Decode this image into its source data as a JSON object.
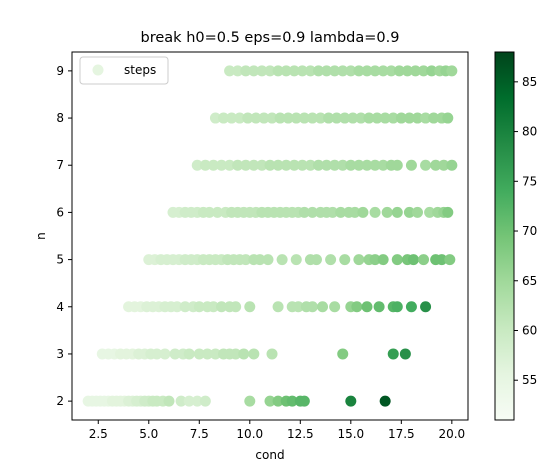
{
  "chart_data": {
    "type": "scatter",
    "title": "break h0=0.5 eps=0.9 lambda=0.9",
    "xlabel": "cond",
    "ylabel": "n",
    "xlim": [
      1.2,
      20.8
    ],
    "ylim": [
      1.6,
      9.4
    ],
    "xticks": [
      2.5,
      5.0,
      7.5,
      10.0,
      12.5,
      15.0,
      17.5,
      20.0
    ],
    "xtick_labels": [
      "2.5",
      "5.0",
      "7.5",
      "10.0",
      "12.5",
      "15.0",
      "17.5",
      "20.0"
    ],
    "yticks": [
      2,
      3,
      4,
      5,
      6,
      7,
      8,
      9
    ],
    "ytick_labels": [
      "2",
      "3",
      "4",
      "5",
      "6",
      "7",
      "8",
      "9"
    ],
    "legend": {
      "position": "top-left",
      "entries": [
        "steps"
      ]
    },
    "colorbar": {
      "colormap": "Greens",
      "range": [
        51,
        88
      ],
      "ticks": [
        55,
        60,
        65,
        70,
        75,
        80,
        85
      ],
      "tick_labels": [
        "55",
        "60",
        "65",
        "70",
        "75",
        "80",
        "85"
      ]
    },
    "grid": false,
    "series": [
      {
        "name": "steps",
        "points": [
          [
            2.0,
            2,
            55
          ],
          [
            2.2,
            2,
            55
          ],
          [
            2.4,
            2,
            55
          ],
          [
            2.6,
            2,
            55
          ],
          [
            2.8,
            2,
            55
          ],
          [
            3.0,
            2,
            55
          ],
          [
            3.2,
            2,
            56
          ],
          [
            3.4,
            2,
            56
          ],
          [
            3.6,
            2,
            56
          ],
          [
            3.8,
            2,
            56
          ],
          [
            4.0,
            2,
            57
          ],
          [
            4.2,
            2,
            57
          ],
          [
            4.4,
            2,
            58
          ],
          [
            4.6,
            2,
            58
          ],
          [
            4.8,
            2,
            59
          ],
          [
            5.0,
            2,
            59
          ],
          [
            5.2,
            2,
            60
          ],
          [
            5.4,
            2,
            60
          ],
          [
            5.7,
            2,
            60
          ],
          [
            6.0,
            2,
            61
          ],
          [
            6.6,
            2,
            59
          ],
          [
            7.0,
            2,
            58
          ],
          [
            7.4,
            2,
            58
          ],
          [
            7.8,
            2,
            59
          ],
          [
            10.0,
            2,
            64
          ],
          [
            11.0,
            2,
            66
          ],
          [
            11.4,
            2,
            68
          ],
          [
            11.8,
            2,
            70
          ],
          [
            12.1,
            2,
            71
          ],
          [
            12.5,
            2,
            72
          ],
          [
            12.7,
            2,
            72
          ],
          [
            15.0,
            2,
            80
          ],
          [
            16.7,
            2,
            86
          ],
          [
            2.7,
            3,
            55
          ],
          [
            3.0,
            3,
            55
          ],
          [
            3.3,
            3,
            55
          ],
          [
            3.6,
            3,
            56
          ],
          [
            3.9,
            3,
            56
          ],
          [
            4.2,
            3,
            56
          ],
          [
            4.5,
            3,
            57
          ],
          [
            4.8,
            3,
            57
          ],
          [
            5.1,
            3,
            58
          ],
          [
            5.4,
            3,
            58
          ],
          [
            5.8,
            3,
            58
          ],
          [
            6.3,
            3,
            59
          ],
          [
            6.7,
            3,
            59
          ],
          [
            7.0,
            3,
            60
          ],
          [
            7.5,
            3,
            60
          ],
          [
            7.9,
            3,
            60
          ],
          [
            8.3,
            3,
            60
          ],
          [
            8.7,
            3,
            61
          ],
          [
            9.0,
            3,
            61
          ],
          [
            9.3,
            3,
            61
          ],
          [
            9.7,
            3,
            62
          ],
          [
            10.2,
            3,
            62
          ],
          [
            11.1,
            3,
            62
          ],
          [
            14.6,
            3,
            68
          ],
          [
            17.1,
            3,
            76
          ],
          [
            17.7,
            3,
            78
          ],
          [
            4.0,
            4,
            56
          ],
          [
            4.3,
            4,
            56
          ],
          [
            4.6,
            4,
            56
          ],
          [
            4.9,
            4,
            57
          ],
          [
            5.2,
            4,
            57
          ],
          [
            5.5,
            4,
            57
          ],
          [
            5.8,
            4,
            58
          ],
          [
            6.1,
            4,
            58
          ],
          [
            6.4,
            4,
            58
          ],
          [
            6.8,
            4,
            59
          ],
          [
            7.2,
            4,
            59
          ],
          [
            7.5,
            4,
            60
          ],
          [
            7.9,
            4,
            60
          ],
          [
            8.2,
            4,
            60
          ],
          [
            8.6,
            4,
            61
          ],
          [
            9.0,
            4,
            61
          ],
          [
            9.3,
            4,
            61
          ],
          [
            10.0,
            4,
            62
          ],
          [
            11.4,
            4,
            62
          ],
          [
            12.1,
            4,
            62
          ],
          [
            12.4,
            4,
            62
          ],
          [
            12.8,
            4,
            63
          ],
          [
            13.1,
            4,
            63
          ],
          [
            13.6,
            4,
            64
          ],
          [
            14.2,
            4,
            64
          ],
          [
            15.0,
            4,
            66
          ],
          [
            15.3,
            4,
            68
          ],
          [
            15.8,
            4,
            70
          ],
          [
            16.4,
            4,
            71
          ],
          [
            17.1,
            4,
            72
          ],
          [
            17.3,
            4,
            73
          ],
          [
            18.0,
            4,
            74
          ],
          [
            18.7,
            4,
            78
          ],
          [
            5.0,
            5,
            57
          ],
          [
            5.3,
            5,
            57
          ],
          [
            5.6,
            5,
            58
          ],
          [
            5.9,
            5,
            58
          ],
          [
            6.2,
            5,
            58
          ],
          [
            6.5,
            5,
            58
          ],
          [
            6.8,
            5,
            59
          ],
          [
            7.1,
            5,
            59
          ],
          [
            7.4,
            5,
            59
          ],
          [
            7.7,
            5,
            60
          ],
          [
            8.0,
            5,
            60
          ],
          [
            8.3,
            5,
            60
          ],
          [
            8.6,
            5,
            60
          ],
          [
            8.9,
            5,
            61
          ],
          [
            9.2,
            5,
            61
          ],
          [
            9.5,
            5,
            61
          ],
          [
            9.8,
            5,
            61
          ],
          [
            10.2,
            5,
            62
          ],
          [
            10.5,
            5,
            62
          ],
          [
            10.9,
            5,
            62
          ],
          [
            11.6,
            5,
            62
          ],
          [
            12.3,
            5,
            62
          ],
          [
            13.0,
            5,
            63
          ],
          [
            13.3,
            5,
            63
          ],
          [
            14.0,
            5,
            63
          ],
          [
            14.7,
            5,
            64
          ],
          [
            15.4,
            5,
            65
          ],
          [
            15.9,
            5,
            66
          ],
          [
            16.2,
            5,
            67
          ],
          [
            16.6,
            5,
            68
          ],
          [
            17.3,
            5,
            68
          ],
          [
            17.8,
            5,
            69
          ],
          [
            18.1,
            5,
            70
          ],
          [
            18.6,
            5,
            67
          ],
          [
            19.2,
            5,
            70
          ],
          [
            19.5,
            5,
            70
          ],
          [
            19.9,
            5,
            68
          ],
          [
            6.2,
            6,
            58
          ],
          [
            6.5,
            6,
            58
          ],
          [
            6.8,
            6,
            59
          ],
          [
            7.1,
            6,
            59
          ],
          [
            7.4,
            6,
            59
          ],
          [
            7.7,
            6,
            60
          ],
          [
            8.0,
            6,
            60
          ],
          [
            8.4,
            6,
            60
          ],
          [
            8.8,
            6,
            60
          ],
          [
            9.1,
            6,
            61
          ],
          [
            9.4,
            6,
            61
          ],
          [
            9.7,
            6,
            61
          ],
          [
            10.0,
            6,
            61
          ],
          [
            10.3,
            6,
            61
          ],
          [
            10.6,
            6,
            62
          ],
          [
            10.9,
            6,
            62
          ],
          [
            11.2,
            6,
            62
          ],
          [
            11.5,
            6,
            62
          ],
          [
            11.8,
            6,
            62
          ],
          [
            12.1,
            6,
            62
          ],
          [
            12.4,
            6,
            62
          ],
          [
            12.7,
            6,
            63
          ],
          [
            13.1,
            6,
            63
          ],
          [
            13.5,
            6,
            63
          ],
          [
            13.8,
            6,
            63
          ],
          [
            14.1,
            6,
            63
          ],
          [
            14.5,
            6,
            64
          ],
          [
            14.9,
            6,
            64
          ],
          [
            15.2,
            6,
            64
          ],
          [
            15.6,
            6,
            65
          ],
          [
            16.2,
            6,
            64
          ],
          [
            16.8,
            6,
            65
          ],
          [
            17.3,
            6,
            66
          ],
          [
            17.9,
            6,
            66
          ],
          [
            18.3,
            6,
            65
          ],
          [
            18.9,
            6,
            64
          ],
          [
            19.3,
            6,
            65
          ],
          [
            19.6,
            6,
            66
          ],
          [
            19.8,
            6,
            68
          ],
          [
            7.4,
            7,
            59
          ],
          [
            7.8,
            7,
            60
          ],
          [
            8.2,
            7,
            60
          ],
          [
            8.6,
            7,
            60
          ],
          [
            9.0,
            7,
            60
          ],
          [
            9.4,
            7,
            61
          ],
          [
            9.8,
            7,
            61
          ],
          [
            10.2,
            7,
            61
          ],
          [
            10.6,
            7,
            61
          ],
          [
            11.0,
            7,
            62
          ],
          [
            11.4,
            7,
            62
          ],
          [
            11.8,
            7,
            62
          ],
          [
            12.2,
            7,
            62
          ],
          [
            12.6,
            7,
            62
          ],
          [
            13.0,
            7,
            62
          ],
          [
            13.4,
            7,
            63
          ],
          [
            13.8,
            7,
            63
          ],
          [
            14.2,
            7,
            63
          ],
          [
            14.6,
            7,
            63
          ],
          [
            15.0,
            7,
            64
          ],
          [
            15.4,
            7,
            64
          ],
          [
            15.8,
            7,
            64
          ],
          [
            16.2,
            7,
            64
          ],
          [
            16.6,
            7,
            64
          ],
          [
            17.0,
            7,
            65
          ],
          [
            17.3,
            7,
            65
          ],
          [
            18.0,
            7,
            65
          ],
          [
            18.7,
            7,
            64
          ],
          [
            19.2,
            7,
            65
          ],
          [
            19.6,
            7,
            65
          ],
          [
            20.0,
            7,
            66
          ],
          [
            8.3,
            8,
            59
          ],
          [
            8.7,
            8,
            60
          ],
          [
            9.1,
            8,
            60
          ],
          [
            9.5,
            8,
            60
          ],
          [
            9.9,
            8,
            61
          ],
          [
            10.3,
            8,
            61
          ],
          [
            10.7,
            8,
            61
          ],
          [
            11.1,
            8,
            61
          ],
          [
            11.5,
            8,
            62
          ],
          [
            11.9,
            8,
            62
          ],
          [
            12.3,
            8,
            62
          ],
          [
            12.7,
            8,
            62
          ],
          [
            13.1,
            8,
            62
          ],
          [
            13.5,
            8,
            62
          ],
          [
            13.9,
            8,
            63
          ],
          [
            14.3,
            8,
            63
          ],
          [
            14.7,
            8,
            63
          ],
          [
            15.1,
            8,
            63
          ],
          [
            15.5,
            8,
            63
          ],
          [
            15.9,
            8,
            64
          ],
          [
            16.3,
            8,
            64
          ],
          [
            16.7,
            8,
            64
          ],
          [
            17.1,
            8,
            64
          ],
          [
            17.5,
            8,
            65
          ],
          [
            17.9,
            8,
            65
          ],
          [
            18.3,
            8,
            65
          ],
          [
            18.7,
            8,
            64
          ],
          [
            19.1,
            8,
            65
          ],
          [
            19.5,
            8,
            65
          ],
          [
            19.8,
            8,
            66
          ],
          [
            9.0,
            9,
            60
          ],
          [
            9.4,
            9,
            60
          ],
          [
            9.8,
            9,
            61
          ],
          [
            10.2,
            9,
            61
          ],
          [
            10.6,
            9,
            61
          ],
          [
            11.0,
            9,
            61
          ],
          [
            11.4,
            9,
            62
          ],
          [
            11.8,
            9,
            62
          ],
          [
            12.2,
            9,
            62
          ],
          [
            12.6,
            9,
            62
          ],
          [
            13.0,
            9,
            62
          ],
          [
            13.4,
            9,
            63
          ],
          [
            13.8,
            9,
            63
          ],
          [
            14.2,
            9,
            63
          ],
          [
            14.6,
            9,
            63
          ],
          [
            15.0,
            9,
            63
          ],
          [
            15.4,
            9,
            64
          ],
          [
            15.8,
            9,
            64
          ],
          [
            16.2,
            9,
            64
          ],
          [
            16.6,
            9,
            64
          ],
          [
            17.0,
            9,
            64
          ],
          [
            17.4,
            9,
            65
          ],
          [
            17.8,
            9,
            65
          ],
          [
            18.2,
            9,
            65
          ],
          [
            18.6,
            9,
            65
          ],
          [
            19.0,
            9,
            66
          ],
          [
            19.4,
            9,
            65
          ],
          [
            19.7,
            9,
            66
          ],
          [
            20.0,
            9,
            65
          ]
        ]
      }
    ]
  }
}
